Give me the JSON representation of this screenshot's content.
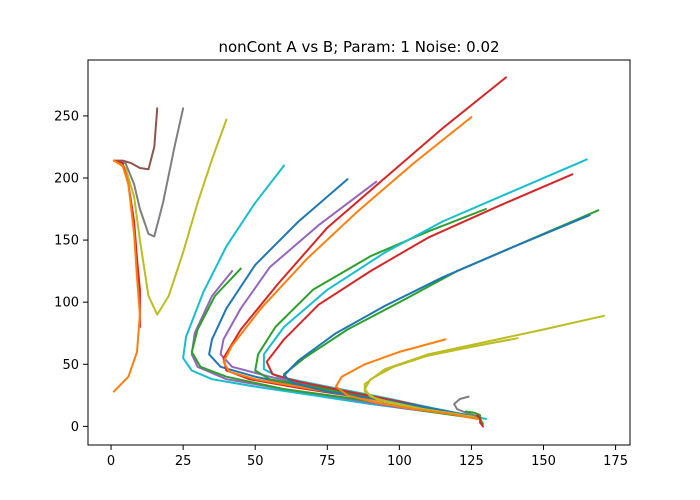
{
  "chart_data": {
    "type": "line",
    "title": "nonCont A vs B; Param: 1 Noise: 0.02",
    "xlabel": "",
    "ylabel": "",
    "xlim": [
      -8,
      180
    ],
    "ylim": [
      -15,
      295
    ],
    "xticks": [
      0,
      25,
      50,
      75,
      100,
      125,
      150,
      175
    ],
    "yticks": [
      0,
      50,
      100,
      150,
      200,
      250
    ],
    "xtick_labels": [
      "0",
      "25",
      "50",
      "75",
      "100",
      "125",
      "150",
      "175"
    ],
    "ytick_labels": [
      "0",
      "50",
      "100",
      "150",
      "200",
      "250"
    ],
    "grid": false,
    "legend": "none",
    "series": [
      {
        "color": "#8c564b",
        "points": [
          [
            1,
            214
          ],
          [
            4,
            214
          ],
          [
            7,
            212
          ],
          [
            10,
            208
          ],
          [
            13,
            207
          ],
          [
            15,
            225
          ],
          [
            16,
            256
          ]
        ]
      },
      {
        "color": "#7f7f7f",
        "points": [
          [
            1,
            214
          ],
          [
            5,
            212
          ],
          [
            8,
            195
          ],
          [
            10,
            175
          ],
          [
            13,
            155
          ],
          [
            15,
            153
          ],
          [
            18,
            180
          ],
          [
            22,
            225
          ],
          [
            25,
            256
          ]
        ]
      },
      {
        "color": "#bcbd22",
        "points": [
          [
            1,
            214
          ],
          [
            5,
            208
          ],
          [
            8,
            185
          ],
          [
            10,
            150
          ],
          [
            13,
            105
          ],
          [
            16,
            90
          ],
          [
            20,
            105
          ],
          [
            25,
            140
          ],
          [
            30,
            180
          ],
          [
            35,
            215
          ],
          [
            40,
            247
          ]
        ]
      },
      {
        "color": "#d62728",
        "points": [
          [
            1,
            214
          ],
          [
            4,
            212
          ],
          [
            6,
            195
          ],
          [
            8,
            165
          ],
          [
            9,
            135
          ],
          [
            10,
            110
          ],
          [
            10,
            80
          ]
        ]
      },
      {
        "color": "#ff7f0e",
        "points": [
          [
            1,
            214
          ],
          [
            4,
            210
          ],
          [
            6,
            195
          ],
          [
            8,
            155
          ],
          [
            9,
            120
          ],
          [
            10,
            90
          ],
          [
            9,
            60
          ],
          [
            6,
            40
          ],
          [
            1,
            28
          ]
        ]
      },
      {
        "color": "#17becf",
        "points": [
          [
            60,
            210
          ],
          [
            50,
            180
          ],
          [
            40,
            145
          ],
          [
            32,
            108
          ],
          [
            26,
            72
          ],
          [
            25,
            55
          ],
          [
            28,
            45
          ],
          [
            35,
            38
          ],
          [
            50,
            32
          ],
          [
            70,
            25
          ],
          [
            90,
            18
          ],
          [
            110,
            12
          ],
          [
            125,
            8
          ],
          [
            130,
            6
          ]
        ]
      },
      {
        "color": "#9467bd",
        "points": [
          [
            42,
            125
          ],
          [
            35,
            105
          ],
          [
            29,
            75
          ],
          [
            28,
            58
          ],
          [
            30,
            48
          ],
          [
            40,
            38
          ],
          [
            60,
            30
          ],
          [
            80,
            23
          ],
          [
            100,
            15
          ],
          [
            120,
            9
          ],
          [
            128,
            6
          ]
        ]
      },
      {
        "color": "#2ca02c",
        "points": [
          [
            45,
            127
          ],
          [
            36,
            105
          ],
          [
            30,
            78
          ],
          [
            28,
            60
          ],
          [
            31,
            48
          ],
          [
            40,
            40
          ],
          [
            60,
            30
          ],
          [
            85,
            22
          ],
          [
            110,
            12
          ],
          [
            128,
            6
          ]
        ]
      },
      {
        "color": "#1f77b4",
        "points": [
          [
            82,
            199
          ],
          [
            65,
            165
          ],
          [
            50,
            130
          ],
          [
            40,
            95
          ],
          [
            35,
            70
          ],
          [
            34,
            58
          ],
          [
            38,
            48
          ],
          [
            50,
            40
          ],
          [
            70,
            30
          ],
          [
            95,
            20
          ],
          [
            115,
            12
          ],
          [
            128,
            7
          ]
        ]
      },
      {
        "color": "#9467bd",
        "points": [
          [
            92,
            197
          ],
          [
            72,
            162
          ],
          [
            55,
            128
          ],
          [
            45,
            95
          ],
          [
            39,
            70
          ],
          [
            38,
            58
          ],
          [
            42,
            48
          ],
          [
            55,
            40
          ],
          [
            75,
            30
          ],
          [
            100,
            19
          ],
          [
            120,
            10
          ],
          [
            128,
            6
          ]
        ]
      },
      {
        "color": "#d62728",
        "points": [
          [
            137,
            281
          ],
          [
            115,
            240
          ],
          [
            95,
            200
          ],
          [
            75,
            160
          ],
          [
            58,
            115
          ],
          [
            45,
            78
          ],
          [
            39,
            55
          ],
          [
            40,
            45
          ],
          [
            48,
            38
          ],
          [
            65,
            31
          ],
          [
            90,
            22
          ],
          [
            110,
            14
          ],
          [
            125,
            8
          ],
          [
            128,
            6
          ]
        ]
      },
      {
        "color": "#ff7f0e",
        "points": [
          [
            125,
            249
          ],
          [
            105,
            212
          ],
          [
            85,
            172
          ],
          [
            68,
            135
          ],
          [
            52,
            95
          ],
          [
            42,
            65
          ],
          [
            39,
            52
          ],
          [
            41,
            44
          ],
          [
            50,
            38
          ],
          [
            70,
            30
          ],
          [
            95,
            20
          ],
          [
            115,
            12
          ],
          [
            127,
            7
          ]
        ]
      },
      {
        "color": "#2ca02c",
        "points": [
          [
            130,
            175
          ],
          [
            110,
            157
          ],
          [
            90,
            137
          ],
          [
            70,
            110
          ],
          [
            57,
            80
          ],
          [
            51,
            58
          ],
          [
            50,
            45
          ],
          [
            55,
            38
          ],
          [
            70,
            32
          ],
          [
            90,
            23
          ],
          [
            110,
            14
          ],
          [
            127,
            7
          ]
        ]
      },
      {
        "color": "#17becf",
        "points": [
          [
            165,
            215
          ],
          [
            140,
            190
          ],
          [
            115,
            165
          ],
          [
            95,
            140
          ],
          [
            75,
            110
          ],
          [
            60,
            80
          ],
          [
            53,
            58
          ],
          [
            53,
            46
          ],
          [
            58,
            40
          ],
          [
            75,
            32
          ],
          [
            95,
            23
          ],
          [
            115,
            13
          ],
          [
            128,
            7
          ]
        ]
      },
      {
        "color": "#d62728",
        "points": [
          [
            160,
            203
          ],
          [
            135,
            178
          ],
          [
            110,
            152
          ],
          [
            90,
            125
          ],
          [
            72,
            98
          ],
          [
            60,
            70
          ],
          [
            54,
            52
          ],
          [
            56,
            42
          ],
          [
            65,
            36
          ],
          [
            82,
            28
          ],
          [
            100,
            20
          ],
          [
            118,
            11
          ],
          [
            128,
            7
          ]
        ]
      },
      {
        "color": "#2ca02c",
        "points": [
          [
            169,
            174
          ],
          [
            145,
            150
          ],
          [
            120,
            125
          ],
          [
            100,
            100
          ],
          [
            82,
            78
          ],
          [
            67,
            55
          ],
          [
            60,
            42
          ],
          [
            62,
            36
          ],
          [
            72,
            30
          ],
          [
            90,
            23
          ],
          [
            110,
            14
          ],
          [
            128,
            7
          ]
        ]
      },
      {
        "color": "#1f77b4",
        "points": [
          [
            166,
            170
          ],
          [
            140,
            145
          ],
          [
            115,
            120
          ],
          [
            95,
            97
          ],
          [
            78,
            75
          ],
          [
            65,
            53
          ],
          [
            60,
            41
          ],
          [
            63,
            35
          ],
          [
            75,
            28
          ],
          [
            95,
            21
          ],
          [
            115,
            13
          ],
          [
            128,
            7
          ]
        ]
      },
      {
        "color": "#bcbd22",
        "points": [
          [
            171,
            89
          ],
          [
            150,
            78
          ],
          [
            130,
            68
          ],
          [
            110,
            58
          ],
          [
            95,
            46
          ],
          [
            88,
            34
          ],
          [
            88,
            28
          ],
          [
            92,
            22
          ],
          [
            100,
            18
          ],
          [
            112,
            12
          ],
          [
            125,
            8
          ],
          [
            128,
            6
          ]
        ]
      },
      {
        "color": "#bcbd22",
        "points": [
          [
            141,
            71
          ],
          [
            125,
            64
          ],
          [
            110,
            57
          ],
          [
            98,
            48
          ],
          [
            90,
            38
          ],
          [
            88,
            30
          ],
          [
            90,
            24
          ],
          [
            97,
            19
          ],
          [
            108,
            14
          ],
          [
            120,
            10
          ],
          [
            127,
            6
          ]
        ]
      },
      {
        "color": "#ff7f0e",
        "points": [
          [
            116,
            70
          ],
          [
            100,
            60
          ],
          [
            88,
            50
          ],
          [
            80,
            40
          ],
          [
            78,
            32
          ],
          [
            82,
            25
          ],
          [
            92,
            19
          ],
          [
            105,
            14
          ],
          [
            118,
            10
          ],
          [
            127,
            6
          ]
        ]
      },
      {
        "color": "#7f7f7f",
        "points": [
          [
            124,
            24
          ],
          [
            121,
            22
          ],
          [
            119,
            18
          ],
          [
            120,
            14
          ],
          [
            123,
            11
          ],
          [
            126,
            9
          ],
          [
            128,
            7
          ]
        ]
      },
      {
        "color": "#2ca02c",
        "points": [
          [
            123,
            12
          ],
          [
            126,
            11
          ],
          [
            128,
            9
          ],
          [
            128,
            6
          ],
          [
            129,
            2
          ]
        ]
      },
      {
        "color": "#d62728",
        "points": [
          [
            127,
            9
          ],
          [
            128,
            6
          ],
          [
            128,
            3
          ],
          [
            129,
            0
          ]
        ]
      }
    ]
  }
}
